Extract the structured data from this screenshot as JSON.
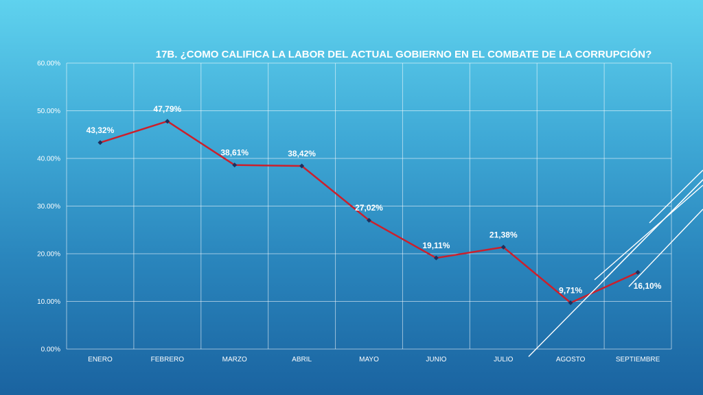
{
  "chart_data": {
    "type": "line",
    "title": "17B. ¿COMO CALIFICA LA LABOR DEL ACTUAL GOBIERNO EN EL COMBATE DE LA CORRUPCIÓN?",
    "xlabel": "",
    "ylabel": "",
    "categories": [
      "ENERO",
      "FEBRERO",
      "MARZO",
      "ABRIL",
      "MAYO",
      "JUNIO",
      "JULIO",
      "AGOSTO",
      "SEPTIEMBRE"
    ],
    "values": [
      43.32,
      47.79,
      38.61,
      38.42,
      27.02,
      19.11,
      21.38,
      9.71,
      16.1
    ],
    "data_labels": [
      "43,32%",
      "47,79%",
      "38,61%",
      "38,42%",
      "27,02%",
      "19,11%",
      "21,38%",
      "9,71%",
      "16,10%"
    ],
    "ylim": [
      0,
      60
    ],
    "yticks": [
      0,
      10,
      20,
      30,
      40,
      50,
      60
    ],
    "ytick_labels": [
      "0.00%",
      "10.00%",
      "20.00%",
      "30.00%",
      "40.00%",
      "50.00%",
      "60.00%"
    ],
    "grid": true,
    "legend": "none",
    "line_color": "#cc1f2b",
    "marker_color": "#1f2f5c",
    "grid_color": "#ffffff",
    "text_color": "#ffffff"
  }
}
